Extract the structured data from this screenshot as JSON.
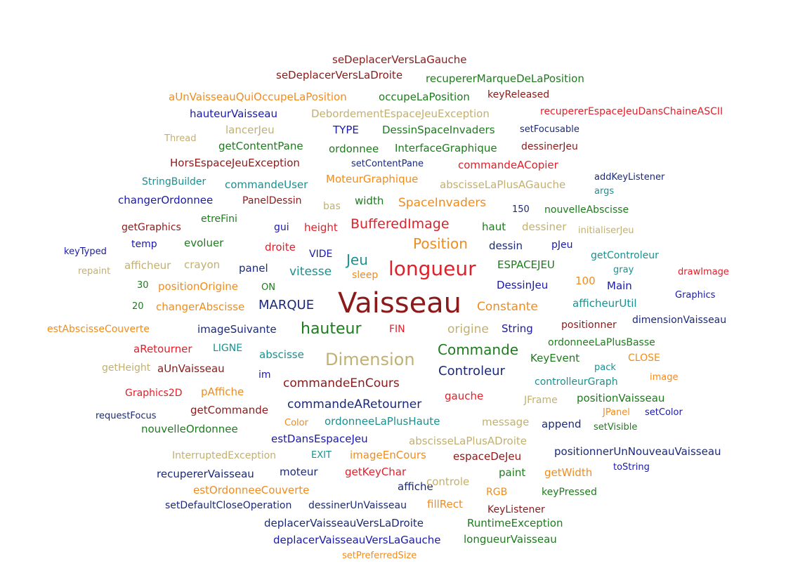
{
  "colors": {
    "maroon": "#8b1a1a",
    "green": "#1e7b1e",
    "orange": "#f08c1e",
    "blue": "#1a1aa8",
    "red": "#e0202a",
    "teal": "#1a9090",
    "khaki": "#c2b070",
    "navy": "#1a2a78"
  },
  "words": [
    {
      "text": "seDeplacerVersLaGauche",
      "color": "maroon"
    },
    {
      "text": "seDeplacerVersLaDroite",
      "color": "maroon"
    },
    {
      "text": "recupererMarqueDeLaPosition",
      "color": "green"
    },
    {
      "text": "aUnVaisseauQuiOccupeLaPosition",
      "color": "orange"
    },
    {
      "text": "occupeLaPosition",
      "color": "green"
    },
    {
      "text": "keyReleased",
      "color": "maroon"
    },
    {
      "text": "hauteurVaisseau",
      "color": "blue"
    },
    {
      "text": "DebordementEspaceJeuException",
      "color": "khaki"
    },
    {
      "text": "recupererEspaceJeuDansChaineASCII",
      "color": "red"
    },
    {
      "text": "lancerJeu",
      "color": "khaki"
    },
    {
      "text": "TYPE",
      "color": "blue"
    },
    {
      "text": "DessinSpaceInvaders",
      "color": "green"
    },
    {
      "text": "setFocusable",
      "color": "navy"
    },
    {
      "text": "Thread",
      "color": "khaki"
    },
    {
      "text": "getContentPane",
      "color": "green"
    },
    {
      "text": "ordonnee",
      "color": "green"
    },
    {
      "text": "InterfaceGraphique",
      "color": "green"
    },
    {
      "text": "dessinerJeu",
      "color": "maroon"
    },
    {
      "text": "HorsEspaceJeuException",
      "color": "maroon"
    },
    {
      "text": "setContentPane",
      "color": "navy"
    },
    {
      "text": "commandeACopier",
      "color": "red"
    },
    {
      "text": "StringBuilder",
      "color": "teal"
    },
    {
      "text": "commandeUser",
      "color": "teal"
    },
    {
      "text": "MoteurGraphique",
      "color": "orange"
    },
    {
      "text": "abscisseLaPlusAGauche",
      "color": "khaki"
    },
    {
      "text": "addKeyListener",
      "color": "navy"
    },
    {
      "text": "args",
      "color": "teal"
    },
    {
      "text": "changerOrdonnee",
      "color": "blue"
    },
    {
      "text": "PanelDessin",
      "color": "maroon"
    },
    {
      "text": "bas",
      "color": "khaki"
    },
    {
      "text": "width",
      "color": "green"
    },
    {
      "text": "SpaceInvaders",
      "color": "orange"
    },
    {
      "text": "150",
      "color": "navy"
    },
    {
      "text": "nouvelleAbscisse",
      "color": "green"
    },
    {
      "text": "getGraphics",
      "color": "maroon"
    },
    {
      "text": "etreFini",
      "color": "green"
    },
    {
      "text": "gui",
      "color": "blue"
    },
    {
      "text": "height",
      "color": "red"
    },
    {
      "text": "BufferedImage",
      "color": "red"
    },
    {
      "text": "haut",
      "color": "green"
    },
    {
      "text": "dessiner",
      "color": "khaki"
    },
    {
      "text": "initialiserJeu",
      "color": "khaki"
    },
    {
      "text": "temp",
      "color": "blue"
    },
    {
      "text": "evoluer",
      "color": "green"
    },
    {
      "text": "droite",
      "color": "red"
    },
    {
      "text": "Position",
      "color": "orange"
    },
    {
      "text": "dessin",
      "color": "navy"
    },
    {
      "text": "pJeu",
      "color": "blue"
    },
    {
      "text": "keyTyped",
      "color": "blue"
    },
    {
      "text": "VIDE",
      "color": "blue"
    },
    {
      "text": "Jeu",
      "color": "teal"
    },
    {
      "text": "getControleur",
      "color": "teal"
    },
    {
      "text": "repaint",
      "color": "khaki"
    },
    {
      "text": "afficheur",
      "color": "khaki"
    },
    {
      "text": "crayon",
      "color": "khaki"
    },
    {
      "text": "panel",
      "color": "navy"
    },
    {
      "text": "vitesse",
      "color": "teal"
    },
    {
      "text": "sleep",
      "color": "orange"
    },
    {
      "text": "longueur",
      "color": "red"
    },
    {
      "text": "ESPACEJEU",
      "color": "green"
    },
    {
      "text": "gray",
      "color": "teal"
    },
    {
      "text": "drawImage",
      "color": "red"
    },
    {
      "text": "30",
      "color": "green"
    },
    {
      "text": "positionOrigine",
      "color": "orange"
    },
    {
      "text": "ON",
      "color": "green"
    },
    {
      "text": "DessinJeu",
      "color": "blue"
    },
    {
      "text": "100",
      "color": "orange"
    },
    {
      "text": "Main",
      "color": "blue"
    },
    {
      "text": "Graphics",
      "color": "blue"
    },
    {
      "text": "20",
      "color": "green"
    },
    {
      "text": "changerAbscisse",
      "color": "orange"
    },
    {
      "text": "MARQUE",
      "color": "navy"
    },
    {
      "text": "Vaisseau",
      "color": "maroon"
    },
    {
      "text": "Constante",
      "color": "orange"
    },
    {
      "text": "afficheurUtil",
      "color": "teal"
    },
    {
      "text": "estAbscisseCouverte",
      "color": "orange"
    },
    {
      "text": "imageSuivante",
      "color": "navy"
    },
    {
      "text": "hauteur",
      "color": "green"
    },
    {
      "text": "FIN",
      "color": "red"
    },
    {
      "text": "origine",
      "color": "khaki"
    },
    {
      "text": "String",
      "color": "blue"
    },
    {
      "text": "positionner",
      "color": "maroon"
    },
    {
      "text": "dimensionVaisseau",
      "color": "navy"
    },
    {
      "text": "aRetourner",
      "color": "red"
    },
    {
      "text": "LIGNE",
      "color": "teal"
    },
    {
      "text": "abscisse",
      "color": "teal"
    },
    {
      "text": "Dimension",
      "color": "khaki"
    },
    {
      "text": "Commande",
      "color": "green"
    },
    {
      "text": "ordonneeLaPlusBasse",
      "color": "green"
    },
    {
      "text": "getHeight",
      "color": "khaki"
    },
    {
      "text": "aUnVaisseau",
      "color": "maroon"
    },
    {
      "text": "im",
      "color": "blue"
    },
    {
      "text": "Controleur",
      "color": "navy"
    },
    {
      "text": "KeyEvent",
      "color": "green"
    },
    {
      "text": "pack",
      "color": "teal"
    },
    {
      "text": "CLOSE",
      "color": "orange"
    },
    {
      "text": "commandeEnCours",
      "color": "maroon"
    },
    {
      "text": "image",
      "color": "orange"
    },
    {
      "text": "controlleurGraph",
      "color": "teal"
    },
    {
      "text": "Graphics2D",
      "color": "red"
    },
    {
      "text": "pAffiche",
      "color": "orange"
    },
    {
      "text": "gauche",
      "color": "red"
    },
    {
      "text": "positionVaisseau",
      "color": "green"
    },
    {
      "text": "commandeARetourner",
      "color": "navy"
    },
    {
      "text": "JFrame",
      "color": "khaki"
    },
    {
      "text": "getCommande",
      "color": "maroon"
    },
    {
      "text": "JPanel",
      "color": "orange"
    },
    {
      "text": "setColor",
      "color": "blue"
    },
    {
      "text": "requestFocus",
      "color": "navy"
    },
    {
      "text": "Color",
      "color": "orange"
    },
    {
      "text": "ordonneeLaPlusHaute",
      "color": "teal"
    },
    {
      "text": "message",
      "color": "khaki"
    },
    {
      "text": "append",
      "color": "navy"
    },
    {
      "text": "setVisible",
      "color": "green"
    },
    {
      "text": "nouvelleOrdonnee",
      "color": "green"
    },
    {
      "text": "estDansEspaceJeu",
      "color": "blue"
    },
    {
      "text": "abscisseLaPlusADroite",
      "color": "khaki"
    },
    {
      "text": "positionnerUnNouveauVaisseau",
      "color": "navy"
    },
    {
      "text": "InterruptedException",
      "color": "khaki"
    },
    {
      "text": "EXIT",
      "color": "teal"
    },
    {
      "text": "imageEnCours",
      "color": "orange"
    },
    {
      "text": "espaceDeJeu",
      "color": "maroon"
    },
    {
      "text": "toString",
      "color": "blue"
    },
    {
      "text": "recupererVaisseau",
      "color": "navy"
    },
    {
      "text": "moteur",
      "color": "navy"
    },
    {
      "text": "getKeyChar",
      "color": "red"
    },
    {
      "text": "paint",
      "color": "green"
    },
    {
      "text": "getWidth",
      "color": "orange"
    },
    {
      "text": "affiche",
      "color": "navy"
    },
    {
      "text": "controle",
      "color": "khaki"
    },
    {
      "text": "estOrdonneeCouverte",
      "color": "orange"
    },
    {
      "text": "RGB",
      "color": "orange"
    },
    {
      "text": "keyPressed",
      "color": "green"
    },
    {
      "text": "setDefaultCloseOperation",
      "color": "navy"
    },
    {
      "text": "dessinerUnVaisseau",
      "color": "navy"
    },
    {
      "text": "fillRect",
      "color": "orange"
    },
    {
      "text": "KeyListener",
      "color": "maroon"
    },
    {
      "text": "deplacerVaisseauVersLaDroite",
      "color": "navy"
    },
    {
      "text": "RuntimeException",
      "color": "green"
    },
    {
      "text": "deplacerVaisseauVersLaGauche",
      "color": "blue"
    },
    {
      "text": "longueurVaisseau",
      "color": "green"
    },
    {
      "text": "setPreferredSize",
      "color": "orange"
    }
  ]
}
